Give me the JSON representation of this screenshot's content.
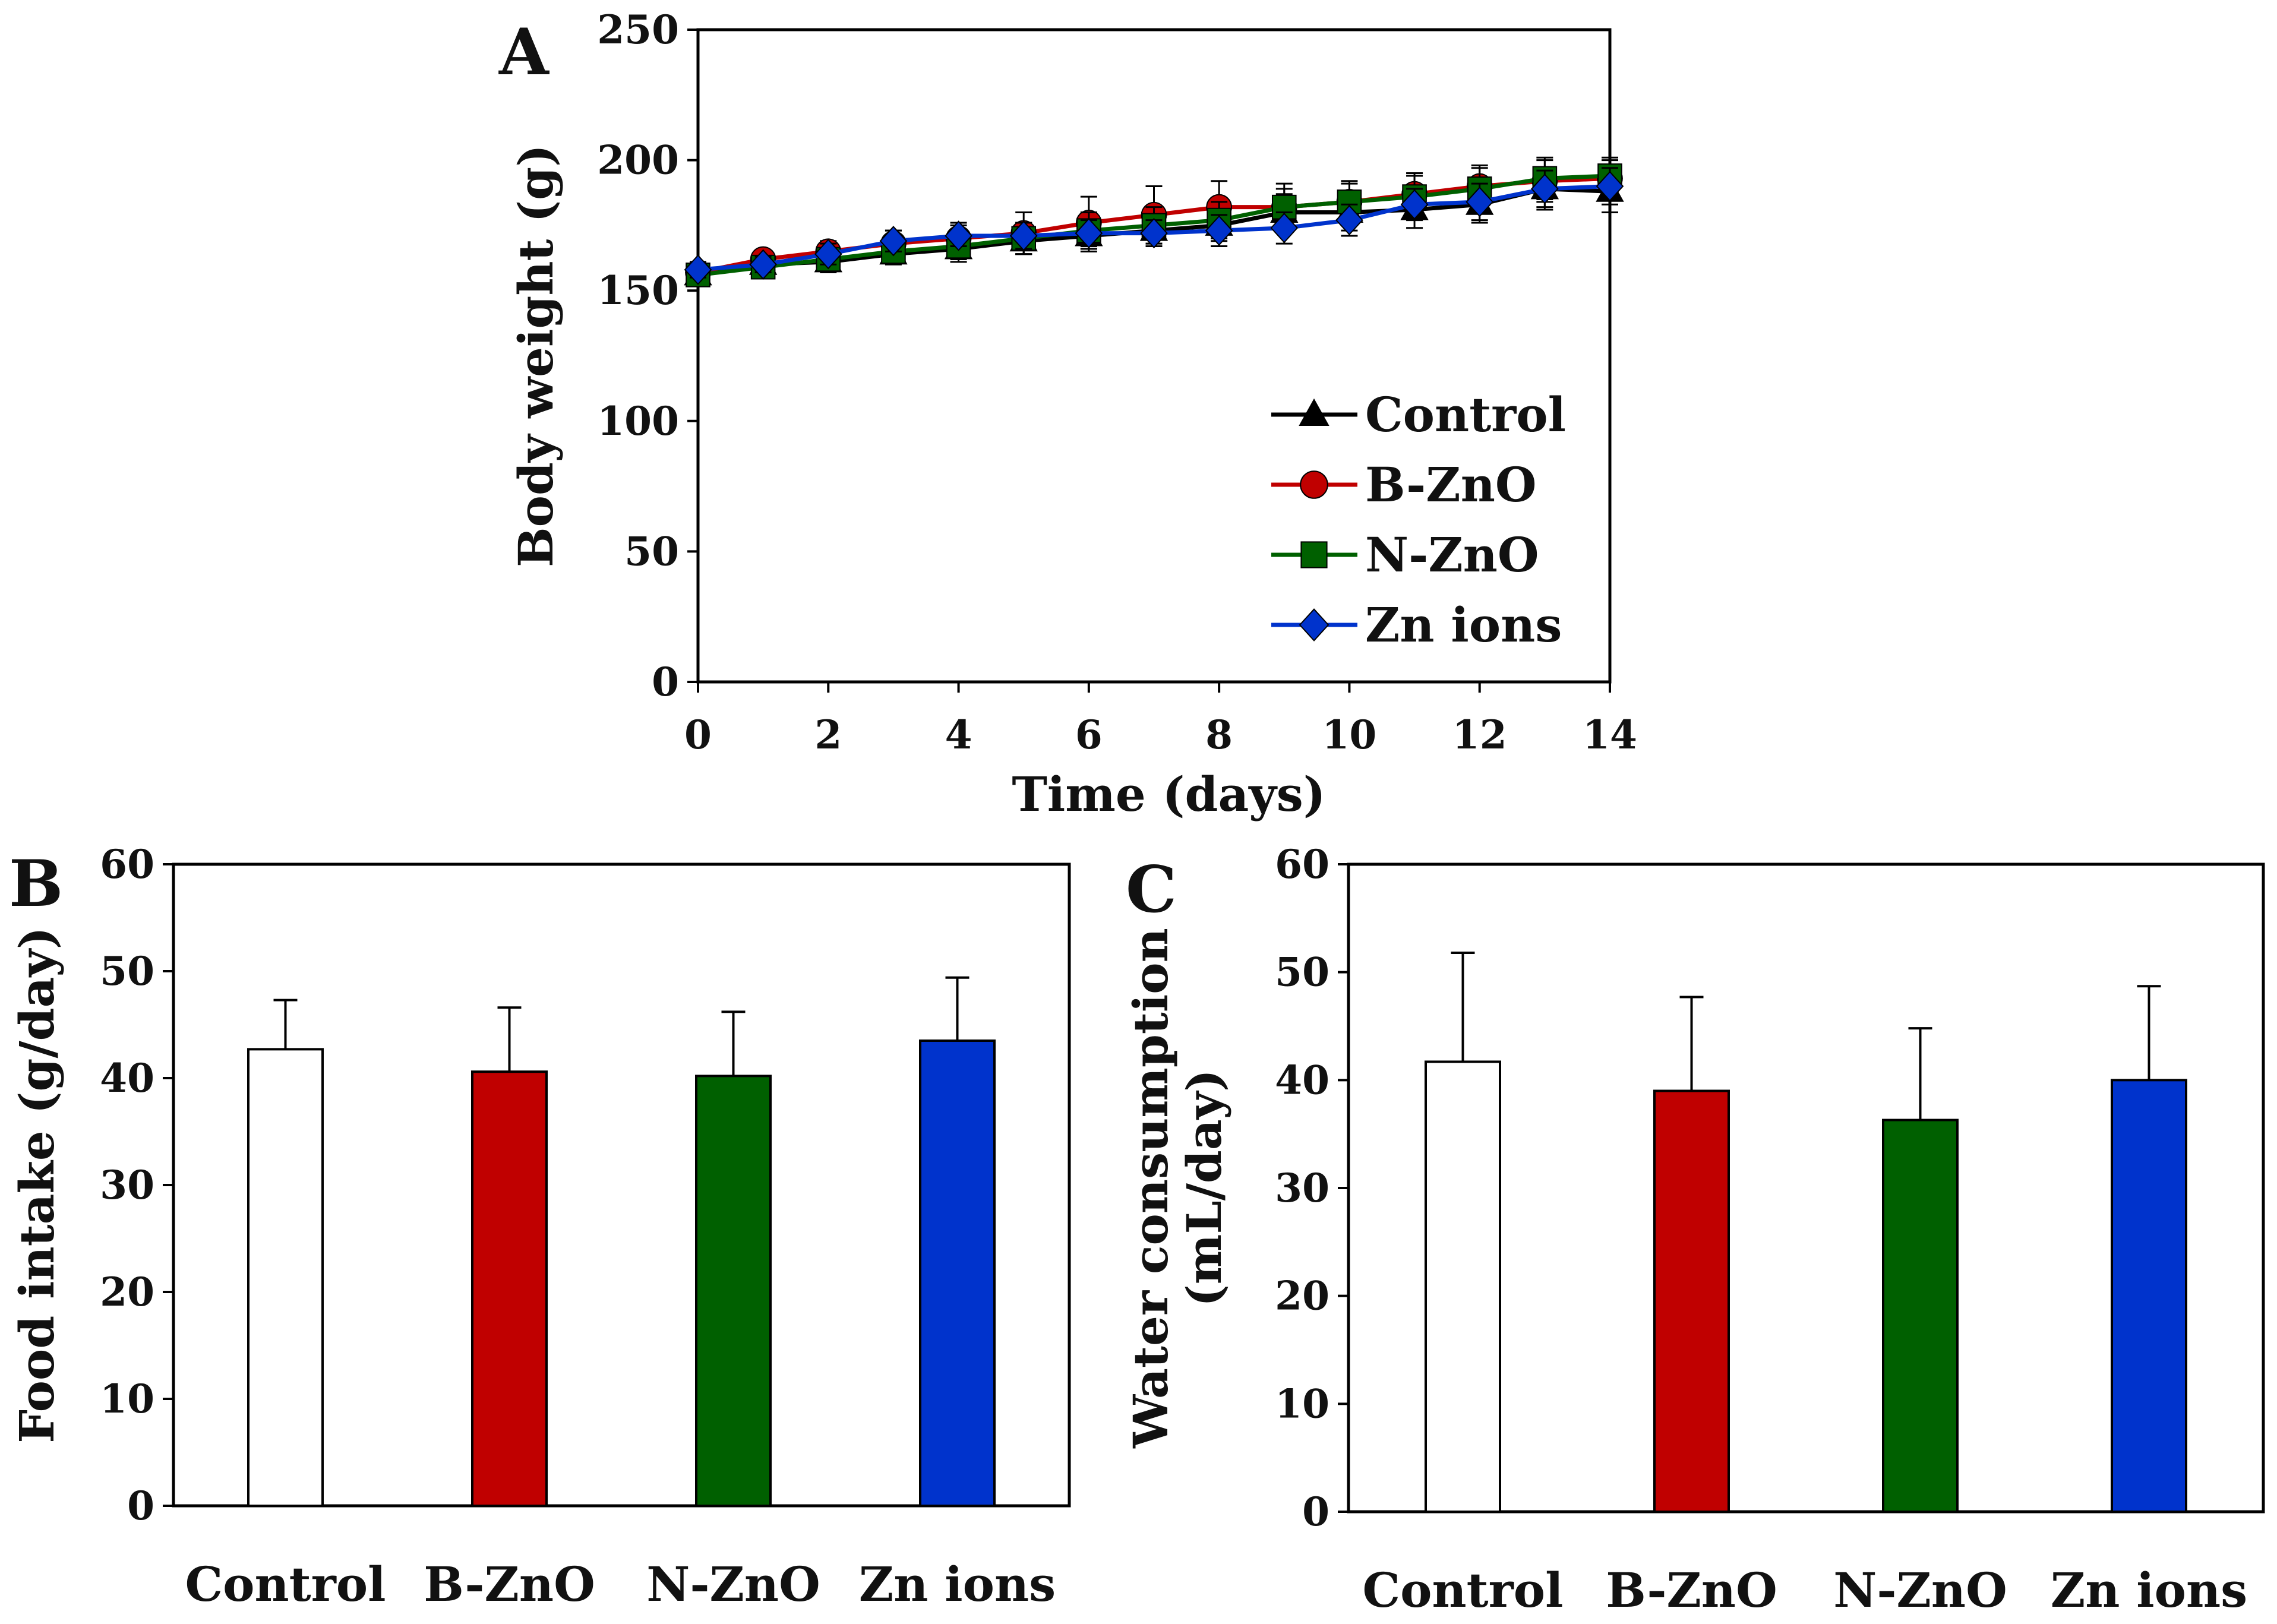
{
  "colors": {
    "control": "#000000",
    "b_zno": "#C00000",
    "n_zno": "#006000",
    "zn_ions": "#0033CC",
    "control_fill": "#FFFFFF"
  },
  "chart_data": [
    {
      "panel": "A",
      "type": "line",
      "xlabel": "Time (days)",
      "ylabel": "Body weight (g)",
      "xlim": [
        0,
        14
      ],
      "ylim": [
        0,
        250
      ],
      "xticks": [
        0,
        2,
        4,
        6,
        8,
        10,
        12,
        14
      ],
      "yticks": [
        0,
        50,
        100,
        150,
        200,
        250
      ],
      "grid": false,
      "legend_position": "bottom-right",
      "x": [
        0,
        1,
        2,
        3,
        4,
        5,
        6,
        7,
        8,
        9,
        10,
        11,
        12,
        13,
        14
      ],
      "series": [
        {
          "name": "Control",
          "marker": "triangle",
          "color": "#000000",
          "values": [
            156,
            160,
            161,
            164,
            166,
            169,
            171,
            173,
            175,
            180,
            180,
            181,
            183,
            189,
            188
          ],
          "errors": [
            3,
            3,
            4,
            4,
            5,
            5,
            6,
            6,
            6,
            7,
            7,
            7,
            7,
            8,
            8
          ]
        },
        {
          "name": "B-ZnO",
          "marker": "circle",
          "color": "#C00000",
          "values": [
            157,
            162,
            165,
            168,
            170,
            172,
            176,
            179,
            182,
            182,
            184,
            187,
            190,
            192,
            193
          ],
          "errors": [
            3,
            3,
            4,
            5,
            6,
            8,
            10,
            11,
            10,
            9,
            8,
            8,
            8,
            8,
            7
          ]
        },
        {
          "name": "N-ZnO",
          "marker": "square",
          "color": "#006000",
          "values": [
            156,
            159,
            162,
            165,
            167,
            170,
            173,
            175,
            177,
            182,
            184,
            186,
            189,
            193,
            194
          ],
          "errors": [
            3,
            3,
            4,
            4,
            5,
            6,
            7,
            7,
            7,
            7,
            7,
            8,
            8,
            8,
            7
          ]
        },
        {
          "name": "Zn ions",
          "marker": "diamond",
          "color": "#0033CC",
          "values": [
            158,
            160,
            164,
            169,
            171,
            171,
            172,
            172,
            173,
            174,
            177,
            183,
            184,
            189,
            190
          ],
          "errors": [
            3,
            3,
            4,
            4,
            4,
            5,
            5,
            5,
            6,
            6,
            6,
            6,
            7,
            7,
            7
          ]
        }
      ]
    },
    {
      "panel": "B",
      "type": "bar",
      "xlabel": "",
      "ylabel": "Food intake (g/day)",
      "ylim": [
        0,
        60
      ],
      "yticks": [
        0,
        10,
        20,
        30,
        40,
        50,
        60
      ],
      "grid": false,
      "categories": [
        "Control",
        "B-ZnO",
        "N-ZnO",
        "Zn ions"
      ],
      "values": [
        42.7,
        40.6,
        40.2,
        43.5
      ],
      "errors": [
        4.6,
        6.0,
        6.0,
        5.9
      ],
      "bar_colors": [
        "#FFFFFF",
        "#C00000",
        "#006000",
        "#0033CC"
      ]
    },
    {
      "panel": "C",
      "type": "bar",
      "xlabel": "",
      "ylabel_lines": [
        "Water consumption",
        "(mL/day)"
      ],
      "ylim": [
        0,
        60
      ],
      "yticks": [
        0,
        10,
        20,
        30,
        40,
        50,
        60
      ],
      "grid": false,
      "categories": [
        "Control",
        "B-ZnO",
        "N-ZnO",
        "Zn ions"
      ],
      "values": [
        41.7,
        39.0,
        36.3,
        40.0
      ],
      "errors": [
        10.1,
        8.7,
        8.5,
        8.7
      ],
      "bar_colors": [
        "#FFFFFF",
        "#C00000",
        "#006000",
        "#0033CC"
      ]
    }
  ]
}
